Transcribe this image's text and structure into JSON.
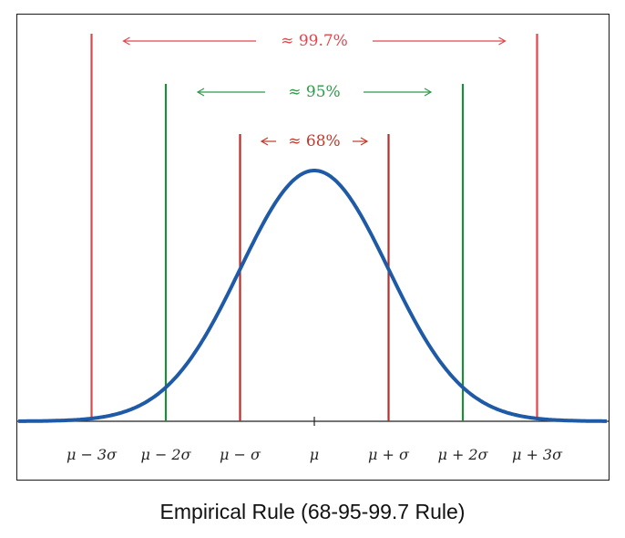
{
  "caption": "Empirical Rule (68-95-99.7 Rule)",
  "chart_data": {
    "type": "line",
    "title": "Empirical Rule (68-95-99.7 Rule)",
    "xlim": [
      -4.2,
      4.0
    ],
    "ylim": [
      0,
      1.1
    ],
    "curve": {
      "name": "normal density",
      "color": "#1f5aa6",
      "x": [
        -4.0,
        -3.5,
        -3.0,
        -2.5,
        -2.0,
        -1.5,
        -1.0,
        -0.5,
        0.0,
        0.5,
        1.0,
        1.5,
        2.0,
        2.5,
        3.0,
        3.5,
        4.0
      ],
      "y": [
        0.0003,
        0.0022,
        0.0111,
        0.0439,
        0.1353,
        0.3247,
        0.6065,
        0.8825,
        1.0,
        0.8825,
        0.6065,
        0.3247,
        0.1353,
        0.0439,
        0.0111,
        0.0022,
        0.0003
      ]
    },
    "ticks": [
      {
        "value": -3,
        "label": "μ − 3σ"
      },
      {
        "value": -2,
        "label": "μ − 2σ"
      },
      {
        "value": -1,
        "label": "μ − σ"
      },
      {
        "value": 0,
        "label": "μ"
      },
      {
        "value": 1,
        "label": "μ + σ"
      },
      {
        "value": 2,
        "label": "μ + 2σ"
      },
      {
        "value": 3,
        "label": "μ + 3σ"
      }
    ],
    "bands": [
      {
        "label": "≈ 68%",
        "k": 1,
        "line_color": "#b5302b",
        "text_color": "#c0392b",
        "top": 0.85
      },
      {
        "label": "≈ 95%",
        "k": 2,
        "line_color": "#1e8c3a",
        "text_color": "#2e9a4a",
        "top": 1.0
      },
      {
        "label": "≈ 99.7%",
        "k": 3,
        "line_color": "#e0474c",
        "text_color": "#e0474c",
        "top": 1.15
      }
    ]
  }
}
